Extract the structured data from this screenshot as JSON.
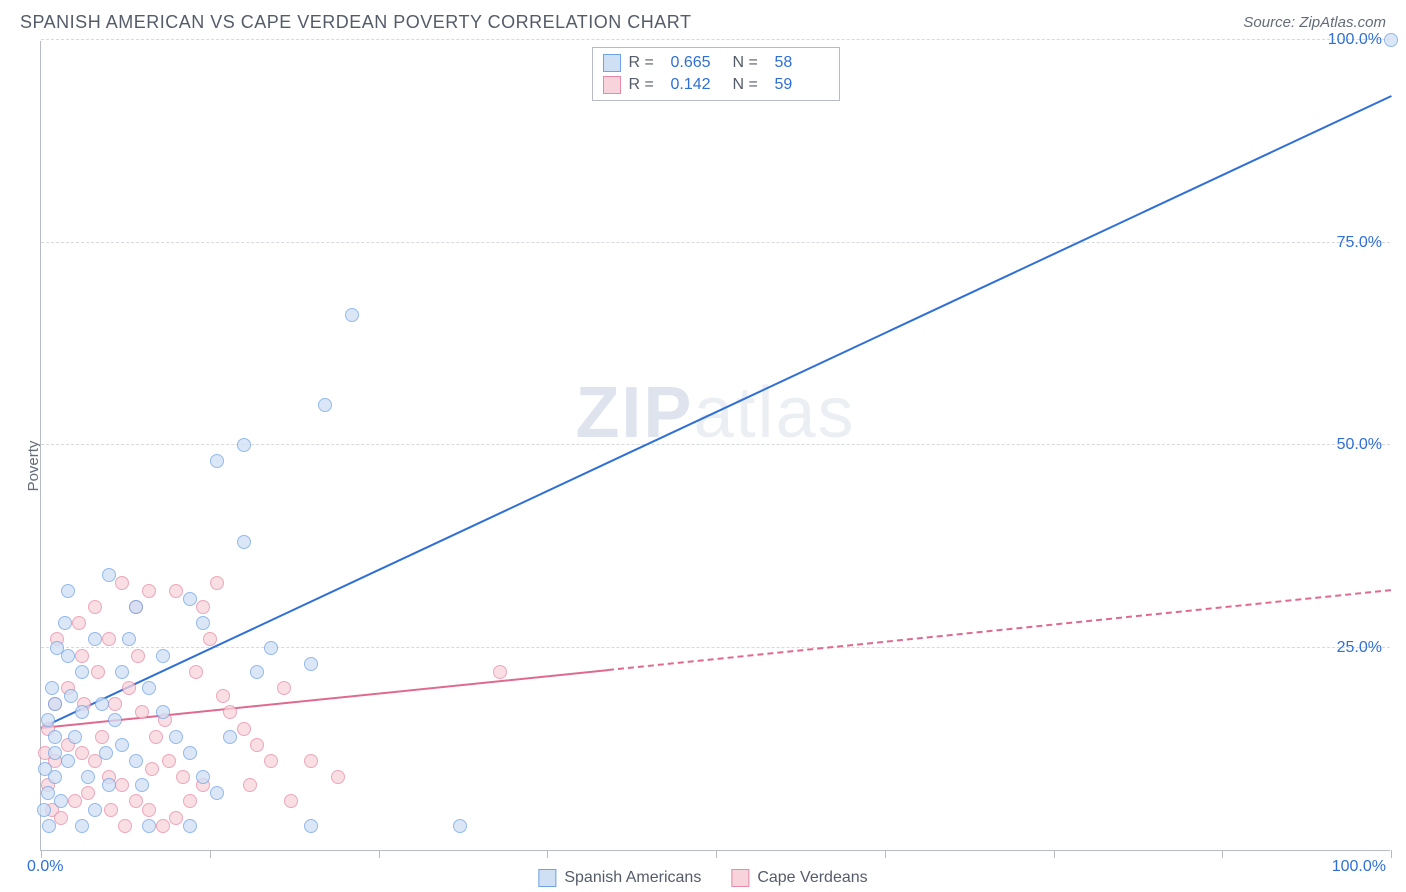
{
  "header": {
    "title": "SPANISH AMERICAN VS CAPE VERDEAN POVERTY CORRELATION CHART",
    "source_prefix": "Source: ",
    "source_name": "ZipAtlas.com"
  },
  "axis": {
    "ylabel": "Poverty",
    "xlim": [
      0,
      100
    ],
    "ylim": [
      0,
      100
    ],
    "y_ticks": [
      25,
      50,
      75,
      100
    ],
    "y_tick_labels": [
      "25.0%",
      "50.0%",
      "75.0%",
      "100.0%"
    ],
    "x_origin_label": "0.0%",
    "x_max_label": "100.0%",
    "x_tick_positions": [
      0,
      12.5,
      25,
      37.5,
      50,
      62.5,
      75,
      87.5,
      100
    ],
    "grid_color": "#d6d9df",
    "axis_color": "#b7bbc4",
    "tick_label_color": "#2f6fd6"
  },
  "watermark": {
    "zip": "ZIP",
    "atlas": "atlas"
  },
  "legend_top": {
    "rows": [
      {
        "swatch_fill": "#cfe0f5",
        "swatch_border": "#6fa3e6",
        "r_label": "R =",
        "r_value": "0.665",
        "n_label": "N =",
        "n_value": "58"
      },
      {
        "swatch_fill": "#f7d3dc",
        "swatch_border": "#e68aa5",
        "r_label": "R =",
        "r_value": "0.142",
        "n_label": "N =",
        "n_value": "59"
      }
    ]
  },
  "legend_bottom": {
    "items": [
      {
        "swatch_fill": "#cfe0f5",
        "swatch_border": "#6fa3e6",
        "label": "Spanish Americans"
      },
      {
        "swatch_fill": "#f7d3dc",
        "swatch_border": "#e68aa5",
        "label": "Cape Verdeans"
      }
    ]
  },
  "series": {
    "spanish": {
      "fill": "#cfe0f5",
      "stroke": "#6fa3e6",
      "trend": {
        "x1": 0,
        "y1": 15,
        "x2": 100,
        "y2": 93,
        "solid_until_x": 100,
        "color": "#2f6fd6",
        "width": 2.5
      },
      "points": [
        [
          100,
          100
        ],
        [
          23,
          66
        ],
        [
          21,
          55
        ],
        [
          15,
          50
        ],
        [
          13,
          48
        ],
        [
          5,
          34
        ],
        [
          7,
          30
        ],
        [
          11,
          31
        ],
        [
          15,
          38
        ],
        [
          2,
          24
        ],
        [
          1,
          18
        ],
        [
          0.5,
          16
        ],
        [
          3,
          22
        ],
        [
          4,
          26
        ],
        [
          1,
          14
        ],
        [
          2,
          11
        ],
        [
          1,
          9
        ],
        [
          0.5,
          7
        ],
        [
          8,
          20
        ],
        [
          9,
          17
        ],
        [
          10,
          14
        ],
        [
          11,
          12
        ],
        [
          12,
          9
        ],
        [
          13,
          7
        ],
        [
          16,
          22
        ],
        [
          17,
          25
        ],
        [
          20,
          23
        ],
        [
          6,
          13
        ],
        [
          7,
          11
        ],
        [
          5,
          8
        ],
        [
          4,
          5
        ],
        [
          3,
          3
        ],
        [
          8,
          3
        ],
        [
          11,
          3
        ],
        [
          20,
          3
        ],
        [
          31,
          3
        ],
        [
          14,
          14
        ],
        [
          2,
          32
        ],
        [
          6,
          22
        ],
        [
          3,
          17
        ],
        [
          1,
          12
        ],
        [
          0.3,
          10
        ],
        [
          0.8,
          20
        ],
        [
          1.5,
          6
        ],
        [
          2.5,
          14
        ],
        [
          4.5,
          18
        ],
        [
          6.5,
          26
        ],
        [
          9,
          24
        ],
        [
          12,
          28
        ],
        [
          0.2,
          5
        ],
        [
          0.6,
          3
        ],
        [
          1.2,
          25
        ],
        [
          5.5,
          16
        ],
        [
          7.5,
          8
        ],
        [
          3.5,
          9
        ],
        [
          2.2,
          19
        ],
        [
          4.8,
          12
        ],
        [
          1.8,
          28
        ]
      ]
    },
    "cape": {
      "fill": "#f7d3dc",
      "stroke": "#e68aa5",
      "trend": {
        "x1": 0,
        "y1": 15,
        "x2": 100,
        "y2": 32,
        "solid_until_x": 42,
        "color": "#e06a8f",
        "width": 2
      },
      "points": [
        [
          34,
          22
        ],
        [
          18,
          20
        ],
        [
          13,
          33
        ],
        [
          12,
          30
        ],
        [
          10,
          32
        ],
        [
          8,
          32
        ],
        [
          7,
          30
        ],
        [
          5,
          26
        ],
        [
          3,
          24
        ],
        [
          2,
          20
        ],
        [
          1,
          18
        ],
        [
          0.5,
          15
        ],
        [
          4,
          30
        ],
        [
          6,
          33
        ],
        [
          14,
          17
        ],
        [
          15,
          15
        ],
        [
          16,
          13
        ],
        [
          17,
          11
        ],
        [
          12,
          8
        ],
        [
          11,
          6
        ],
        [
          10,
          4
        ],
        [
          9,
          3
        ],
        [
          8,
          5
        ],
        [
          7,
          6
        ],
        [
          6,
          8
        ],
        [
          5,
          9
        ],
        [
          4,
          11
        ],
        [
          3,
          12
        ],
        [
          2,
          13
        ],
        [
          1,
          11
        ],
        [
          0.5,
          8
        ],
        [
          0.8,
          5
        ],
        [
          1.5,
          4
        ],
        [
          2.5,
          6
        ],
        [
          3.5,
          7
        ],
        [
          4.5,
          14
        ],
        [
          5.5,
          18
        ],
        [
          6.5,
          20
        ],
        [
          7.5,
          17
        ],
        [
          8.5,
          14
        ],
        [
          9.5,
          11
        ],
        [
          10.5,
          9
        ],
        [
          11.5,
          22
        ],
        [
          13.5,
          19
        ],
        [
          15.5,
          8
        ],
        [
          18.5,
          6
        ],
        [
          20,
          11
        ],
        [
          22,
          9
        ],
        [
          2.8,
          28
        ],
        [
          1.2,
          26
        ],
        [
          0.3,
          12
        ],
        [
          3.2,
          18
        ],
        [
          4.2,
          22
        ],
        [
          5.2,
          5
        ],
        [
          6.2,
          3
        ],
        [
          7.2,
          24
        ],
        [
          8.2,
          10
        ],
        [
          9.2,
          16
        ],
        [
          12.5,
          26
        ]
      ]
    }
  }
}
